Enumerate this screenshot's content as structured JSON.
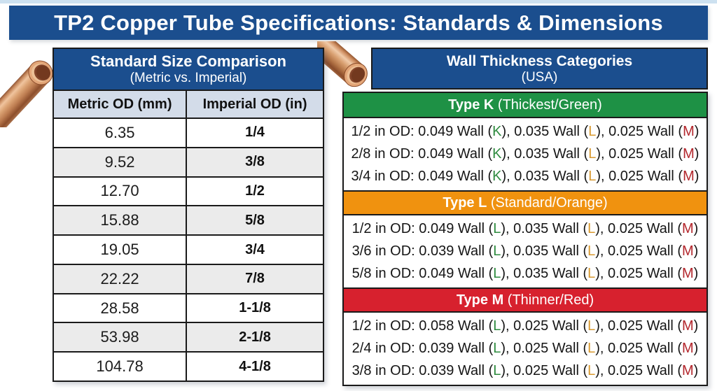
{
  "title": "TP2 Copper Tube Specifications: Standards & Dimensions",
  "size_table": {
    "title": "Standard Size Comparison",
    "subtitle": "(Metric vs. Imperial)",
    "columns": [
      "Metric OD (mm)",
      "Imperial OD (in)"
    ],
    "rows": [
      [
        "6.35",
        "1/4"
      ],
      [
        "9.52",
        "3/8"
      ],
      [
        "12.70",
        "1/2"
      ],
      [
        "15.88",
        "5/8"
      ],
      [
        "19.05",
        "3/4"
      ],
      [
        "22.22",
        "7/8"
      ],
      [
        "28.58",
        "1-1/8"
      ],
      [
        "53.98",
        "2-1/8"
      ],
      [
        "104.78",
        "4-1/8"
      ]
    ]
  },
  "wall_categories": {
    "title": "Wall Thickness Categories",
    "subtitle": "(USA)",
    "letter_slot_colors": [
      "#2e8b3f",
      "#d8992f",
      "#b3262c"
    ],
    "sections": [
      {
        "name": "Type K",
        "qualifier": " (Thickest/Green)",
        "color": "#1e9145",
        "rows": [
          {
            "od": "1/2",
            "entries": [
              [
                "0.049",
                "K"
              ],
              [
                "0.035",
                "L"
              ],
              [
                "0.025",
                "M"
              ]
            ]
          },
          {
            "od": "2/8",
            "entries": [
              [
                "0.049",
                "K"
              ],
              [
                "0.035",
                "L"
              ],
              [
                "0.025",
                "M"
              ]
            ]
          },
          {
            "od": "3/4",
            "entries": [
              [
                "0.049",
                "K"
              ],
              [
                "0.035",
                "L"
              ],
              [
                "0.025",
                "M"
              ]
            ]
          }
        ]
      },
      {
        "name": "Type L",
        "qualifier": " (Standard/Orange)",
        "color": "#f0920f",
        "rows": [
          {
            "od": "1/2",
            "entries": [
              [
                "0.049",
                "L"
              ],
              [
                "0.035",
                "L"
              ],
              [
                "0.025",
                "M"
              ]
            ]
          },
          {
            "od": "3/6",
            "entries": [
              [
                "0.039",
                "L"
              ],
              [
                "0.035",
                "L"
              ],
              [
                "0.025",
                "M"
              ]
            ]
          },
          {
            "od": "5/8",
            "entries": [
              [
                "0.049",
                "L"
              ],
              [
                "0.035",
                "L"
              ],
              [
                "0.025",
                "M"
              ]
            ]
          }
        ]
      },
      {
        "name": "Type M",
        "qualifier": " (Thinner/Red)",
        "color": "#d7212e",
        "rows": [
          {
            "od": "1/2",
            "entries": [
              [
                "0.058",
                "L"
              ],
              [
                "0.025",
                "L"
              ],
              [
                "0.025",
                "M"
              ]
            ]
          },
          {
            "od": "2/4",
            "entries": [
              [
                "0.039",
                "L"
              ],
              [
                "0.025",
                "L"
              ],
              [
                "0.025",
                "M"
              ]
            ]
          },
          {
            "od": "3/8",
            "entries": [
              [
                "0.039",
                "L"
              ],
              [
                "0.025",
                "L"
              ],
              [
                "0.025",
                "M"
              ]
            ]
          }
        ]
      }
    ]
  },
  "colors": {
    "banner_blue": "#1b4e8e",
    "column_header_bg": "#d3dce9",
    "row_alt_bg": "#ebebeb",
    "type_k_green": "#1e9145",
    "type_l_orange": "#f0920f",
    "type_m_red": "#d7212e",
    "copper": "#c98a62"
  }
}
